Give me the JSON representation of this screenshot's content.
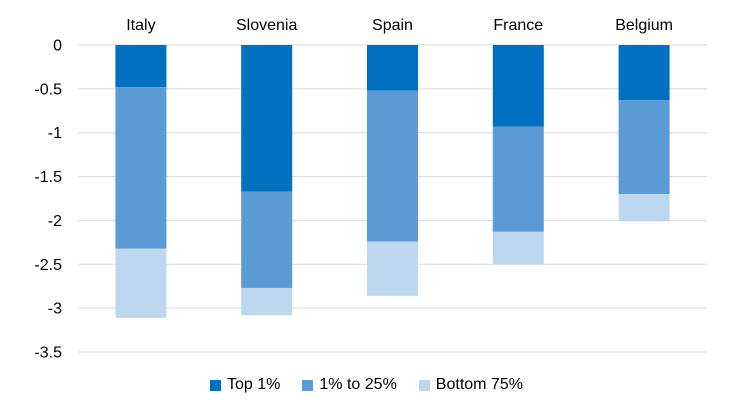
{
  "chart_data": {
    "type": "bar",
    "stacked": true,
    "categories": [
      "Italy",
      "Slovenia",
      "Spain",
      "France",
      "Belgium"
    ],
    "series": [
      {
        "name": "Top 1%",
        "color": "#0070c0",
        "values": [
          -0.48,
          -1.67,
          -0.52,
          -0.93,
          -0.63
        ]
      },
      {
        "name": "1% to 25%",
        "color": "#5b9bd5",
        "values": [
          -1.84,
          -1.1,
          -1.72,
          -1.2,
          -1.07
        ]
      },
      {
        "name": "Bottom 75%",
        "color": "#bdd7ee",
        "values": [
          -0.79,
          -0.31,
          -0.62,
          -0.37,
          -0.31
        ]
      }
    ],
    "ylim": [
      -3.5,
      0
    ],
    "yticks": [
      "0",
      "-0.5",
      "-1",
      "-1.5",
      "-2",
      "-2.5",
      "-3",
      "-3.5"
    ],
    "ytick_values": [
      0,
      -0.5,
      -1,
      -1.5,
      -2,
      -2.5,
      -3,
      -3.5
    ],
    "category_axis_position": "top",
    "grid": true,
    "legend_position": "bottom"
  }
}
